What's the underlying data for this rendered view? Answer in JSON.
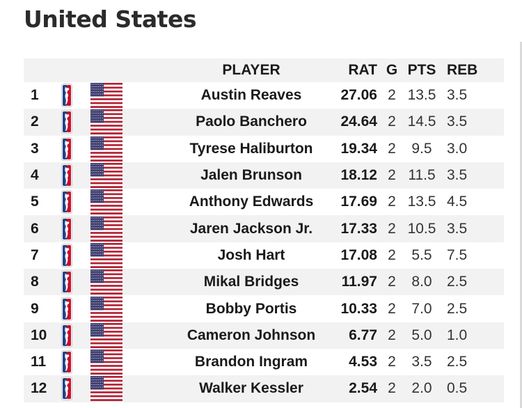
{
  "title": "United States",
  "columns": {
    "player": "PLAYER",
    "rat": "RAT",
    "g": "G",
    "pts": "PTS",
    "reb": "REB"
  },
  "icons": {
    "league": "nba-logo-icon",
    "country": "us-flag-icon"
  },
  "colors": {
    "nba_blue": "#1d428a",
    "nba_red": "#c8102e",
    "flag_red": "#b22234",
    "flag_blue": "#3c3b6e",
    "row_stripe": "#f2f2f2"
  },
  "rows": [
    {
      "rank": "1",
      "player": "Austin Reaves",
      "rat": "27.06",
      "g": "2",
      "pts": "13.5",
      "reb": "3.5"
    },
    {
      "rank": "2",
      "player": "Paolo Banchero",
      "rat": "24.64",
      "g": "2",
      "pts": "14.5",
      "reb": "3.5"
    },
    {
      "rank": "3",
      "player": "Tyrese Haliburton",
      "rat": "19.34",
      "g": "2",
      "pts": "9.5",
      "reb": "3.0"
    },
    {
      "rank": "4",
      "player": "Jalen Brunson",
      "rat": "18.12",
      "g": "2",
      "pts": "11.5",
      "reb": "3.5"
    },
    {
      "rank": "5",
      "player": "Anthony Edwards",
      "rat": "17.69",
      "g": "2",
      "pts": "13.5",
      "reb": "4.5"
    },
    {
      "rank": "6",
      "player": "Jaren Jackson Jr.",
      "rat": "17.33",
      "g": "2",
      "pts": "10.5",
      "reb": "3.5"
    },
    {
      "rank": "7",
      "player": "Josh Hart",
      "rat": "17.08",
      "g": "2",
      "pts": "5.5",
      "reb": "7.5"
    },
    {
      "rank": "8",
      "player": "Mikal Bridges",
      "rat": "11.97",
      "g": "2",
      "pts": "8.0",
      "reb": "2.5"
    },
    {
      "rank": "9",
      "player": "Bobby Portis",
      "rat": "10.33",
      "g": "2",
      "pts": "7.0",
      "reb": "2.5"
    },
    {
      "rank": "10",
      "player": "Cameron Johnson",
      "rat": "6.77",
      "g": "2",
      "pts": "5.0",
      "reb": "1.0"
    },
    {
      "rank": "11",
      "player": "Brandon Ingram",
      "rat": "4.53",
      "g": "2",
      "pts": "3.5",
      "reb": "2.5"
    },
    {
      "rank": "12",
      "player": "Walker Kessler",
      "rat": "2.54",
      "g": "2",
      "pts": "2.0",
      "reb": "0.5"
    }
  ]
}
